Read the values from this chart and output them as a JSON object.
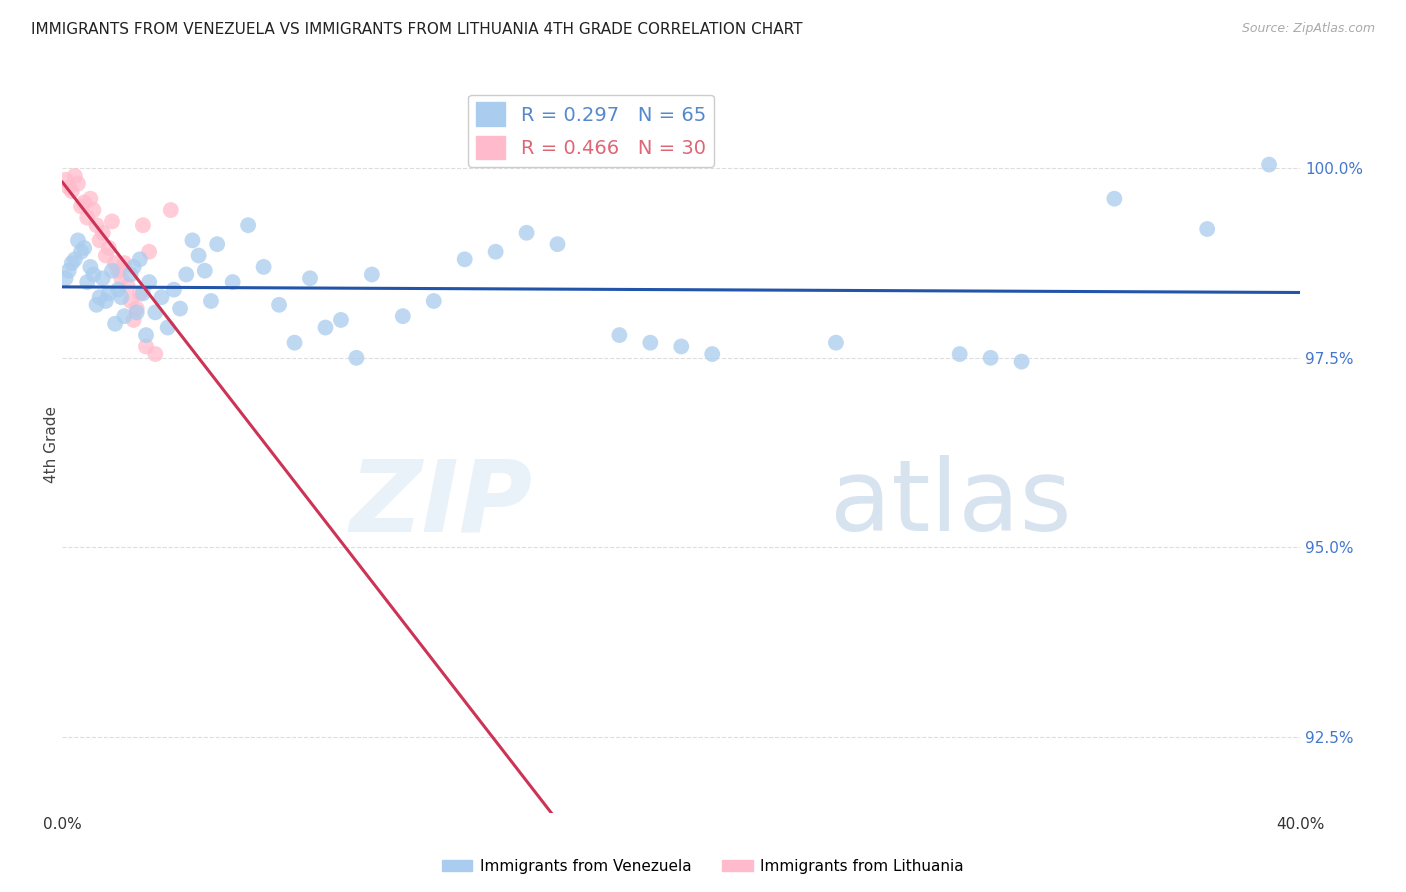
{
  "title": "IMMIGRANTS FROM VENEZUELA VS IMMIGRANTS FROM LITHUANIA 4TH GRADE CORRELATION CHART",
  "source": "Source: ZipAtlas.com",
  "ylabel_left": "4th Grade",
  "x_min": 0.0,
  "x_max": 0.4,
  "y_min": 91.5,
  "y_max": 101.2,
  "right_yticks": [
    92.5,
    95.0,
    97.5,
    100.0
  ],
  "x_ticks": [
    0.0,
    0.05,
    0.1,
    0.15,
    0.2,
    0.25,
    0.3,
    0.35,
    0.4
  ],
  "x_tick_labels": [
    "0.0%",
    "",
    "",
    "",
    "",
    "",
    "",
    "",
    "40.0%"
  ],
  "legend_entries": [
    {
      "label": "R = 0.297   N = 65",
      "color": "#5588cc"
    },
    {
      "label": "R = 0.466   N = 30",
      "color": "#dd6677"
    }
  ],
  "watermark_zip": "ZIP",
  "watermark_atlas": "atlas",
  "venezuela_color": "#aaccee",
  "venezuela_edge": "#aaccee",
  "venezuela_line_color": "#2255aa",
  "lithuania_color": "#ffbbcc",
  "lithuania_edge": "#ffbbcc",
  "lithuania_line_color": "#cc3355",
  "venezuela_scatter": [
    [
      0.001,
      98.55
    ],
    [
      0.002,
      98.65
    ],
    [
      0.003,
      98.75
    ],
    [
      0.004,
      98.8
    ],
    [
      0.005,
      99.05
    ],
    [
      0.006,
      98.9
    ],
    [
      0.007,
      98.95
    ],
    [
      0.008,
      98.5
    ],
    [
      0.009,
      98.7
    ],
    [
      0.01,
      98.6
    ],
    [
      0.011,
      98.2
    ],
    [
      0.012,
      98.3
    ],
    [
      0.013,
      98.55
    ],
    [
      0.014,
      98.25
    ],
    [
      0.015,
      98.35
    ],
    [
      0.016,
      98.65
    ],
    [
      0.017,
      97.95
    ],
    [
      0.018,
      98.4
    ],
    [
      0.019,
      98.3
    ],
    [
      0.02,
      98.05
    ],
    [
      0.022,
      98.6
    ],
    [
      0.023,
      98.7
    ],
    [
      0.024,
      98.1
    ],
    [
      0.025,
      98.8
    ],
    [
      0.026,
      98.35
    ],
    [
      0.027,
      97.8
    ],
    [
      0.028,
      98.5
    ],
    [
      0.03,
      98.1
    ],
    [
      0.032,
      98.3
    ],
    [
      0.034,
      97.9
    ],
    [
      0.036,
      98.4
    ],
    [
      0.038,
      98.15
    ],
    [
      0.04,
      98.6
    ],
    [
      0.042,
      99.05
    ],
    [
      0.044,
      98.85
    ],
    [
      0.046,
      98.65
    ],
    [
      0.048,
      98.25
    ],
    [
      0.05,
      99.0
    ],
    [
      0.055,
      98.5
    ],
    [
      0.06,
      99.25
    ],
    [
      0.065,
      98.7
    ],
    [
      0.07,
      98.2
    ],
    [
      0.075,
      97.7
    ],
    [
      0.08,
      98.55
    ],
    [
      0.085,
      97.9
    ],
    [
      0.09,
      98.0
    ],
    [
      0.095,
      97.5
    ],
    [
      0.1,
      98.6
    ],
    [
      0.11,
      98.05
    ],
    [
      0.12,
      98.25
    ],
    [
      0.13,
      98.8
    ],
    [
      0.14,
      98.9
    ],
    [
      0.15,
      99.15
    ],
    [
      0.16,
      99.0
    ],
    [
      0.18,
      97.8
    ],
    [
      0.19,
      97.7
    ],
    [
      0.2,
      97.65
    ],
    [
      0.21,
      97.55
    ],
    [
      0.25,
      97.7
    ],
    [
      0.29,
      97.55
    ],
    [
      0.3,
      97.5
    ],
    [
      0.31,
      97.45
    ],
    [
      0.34,
      99.6
    ],
    [
      0.37,
      99.2
    ],
    [
      0.39,
      100.05
    ]
  ],
  "lithuania_scatter": [
    [
      0.001,
      99.85
    ],
    [
      0.002,
      99.75
    ],
    [
      0.003,
      99.7
    ],
    [
      0.004,
      99.9
    ],
    [
      0.005,
      99.8
    ],
    [
      0.006,
      99.5
    ],
    [
      0.007,
      99.55
    ],
    [
      0.008,
      99.35
    ],
    [
      0.009,
      99.6
    ],
    [
      0.01,
      99.45
    ],
    [
      0.011,
      99.25
    ],
    [
      0.012,
      99.05
    ],
    [
      0.013,
      99.15
    ],
    [
      0.014,
      98.85
    ],
    [
      0.015,
      98.95
    ],
    [
      0.016,
      99.3
    ],
    [
      0.017,
      98.75
    ],
    [
      0.018,
      98.65
    ],
    [
      0.019,
      98.55
    ],
    [
      0.02,
      98.75
    ],
    [
      0.021,
      98.45
    ],
    [
      0.022,
      98.25
    ],
    [
      0.023,
      98.0
    ],
    [
      0.024,
      98.15
    ],
    [
      0.025,
      98.35
    ],
    [
      0.026,
      99.25
    ],
    [
      0.027,
      97.65
    ],
    [
      0.028,
      98.9
    ],
    [
      0.03,
      97.55
    ],
    [
      0.035,
      99.45
    ]
  ],
  "background_color": "#ffffff",
  "grid_color": "#dddddd",
  "title_fontsize": 11,
  "source_fontsize": 9,
  "right_axis_color": "#4477cc"
}
